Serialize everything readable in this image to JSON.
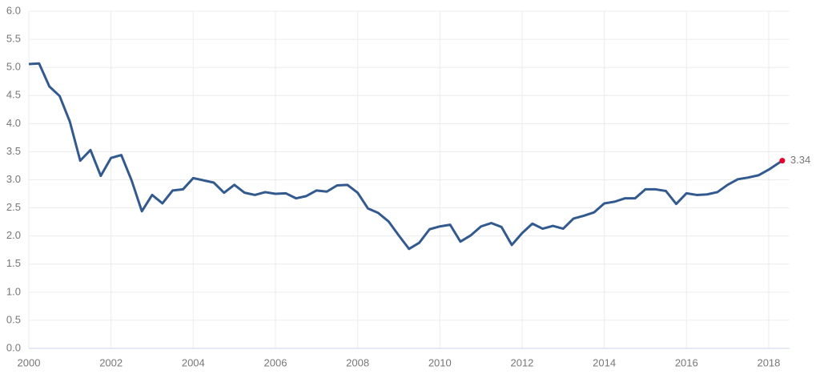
{
  "chart_data": {
    "type": "line",
    "x": [
      2000,
      2000.25,
      2000.5,
      2000.75,
      2001,
      2001.25,
      2001.5,
      2001.75,
      2002,
      2002.25,
      2002.5,
      2002.75,
      2003,
      2003.25,
      2003.5,
      2003.75,
      2004,
      2004.25,
      2004.5,
      2004.75,
      2005,
      2005.25,
      2005.5,
      2005.75,
      2006,
      2006.25,
      2006.5,
      2006.75,
      2007,
      2007.25,
      2007.5,
      2007.75,
      2008,
      2008.25,
      2008.5,
      2008.75,
      2009,
      2009.25,
      2009.5,
      2009.75,
      2010,
      2010.25,
      2010.5,
      2010.75,
      2011,
      2011.25,
      2011.5,
      2011.75,
      2012,
      2012.25,
      2012.5,
      2012.75,
      2013,
      2013.25,
      2013.5,
      2013.75,
      2014,
      2014.25,
      2014.5,
      2014.75,
      2015,
      2015.25,
      2015.5,
      2015.75,
      2016,
      2016.25,
      2016.5,
      2016.75,
      2017,
      2017.25,
      2017.5,
      2017.75,
      2018,
      2018.33
    ],
    "series": [
      {
        "color": "#335a8f",
        "values": [
          5.06,
          5.07,
          4.66,
          4.49,
          4.03,
          3.34,
          3.53,
          3.07,
          3.39,
          3.44,
          2.99,
          2.44,
          2.73,
          2.58,
          2.81,
          2.83,
          3.03,
          2.99,
          2.95,
          2.77,
          2.91,
          2.77,
          2.73,
          2.78,
          2.75,
          2.76,
          2.67,
          2.71,
          2.81,
          2.79,
          2.9,
          2.91,
          2.77,
          2.49,
          2.41,
          2.26,
          2.01,
          1.77,
          1.88,
          2.12,
          2.17,
          2.2,
          1.9,
          2.01,
          2.17,
          2.23,
          2.16,
          1.84,
          2.05,
          2.22,
          2.13,
          2.18,
          2.13,
          2.31,
          2.36,
          2.42,
          2.58,
          2.61,
          2.67,
          2.67,
          2.83,
          2.83,
          2.8,
          2.57,
          2.76,
          2.73,
          2.74,
          2.78,
          2.91,
          3.01,
          3.04,
          3.08,
          3.18,
          3.34
        ]
      }
    ],
    "last_point_color": "#e4002b",
    "xlim": [
      2000,
      2018.5
    ],
    "xticks": [
      2000,
      2002,
      2004,
      2006,
      2008,
      2010,
      2012,
      2014,
      2016,
      2018
    ],
    "ylim": [
      0,
      6
    ],
    "yticks": [
      {
        "value": 0,
        "label": "0.0"
      },
      {
        "value": 0.5,
        "label": "0.5"
      },
      {
        "value": 1,
        "label": "1.0"
      },
      {
        "value": 1.5,
        "label": "1.5"
      },
      {
        "value": 2,
        "label": "2.0"
      },
      {
        "value": 2.5,
        "label": "2.5"
      },
      {
        "value": 3,
        "label": "3.0"
      },
      {
        "value": 3.5,
        "label": "3.5"
      },
      {
        "value": 4,
        "label": "4.0"
      },
      {
        "value": 4.5,
        "label": "4.5"
      },
      {
        "value": 5,
        "label": "5.0"
      },
      {
        "value": 5.5,
        "label": "5.5"
      },
      {
        "value": 6,
        "label": "6.0"
      }
    ],
    "grid": true
  }
}
